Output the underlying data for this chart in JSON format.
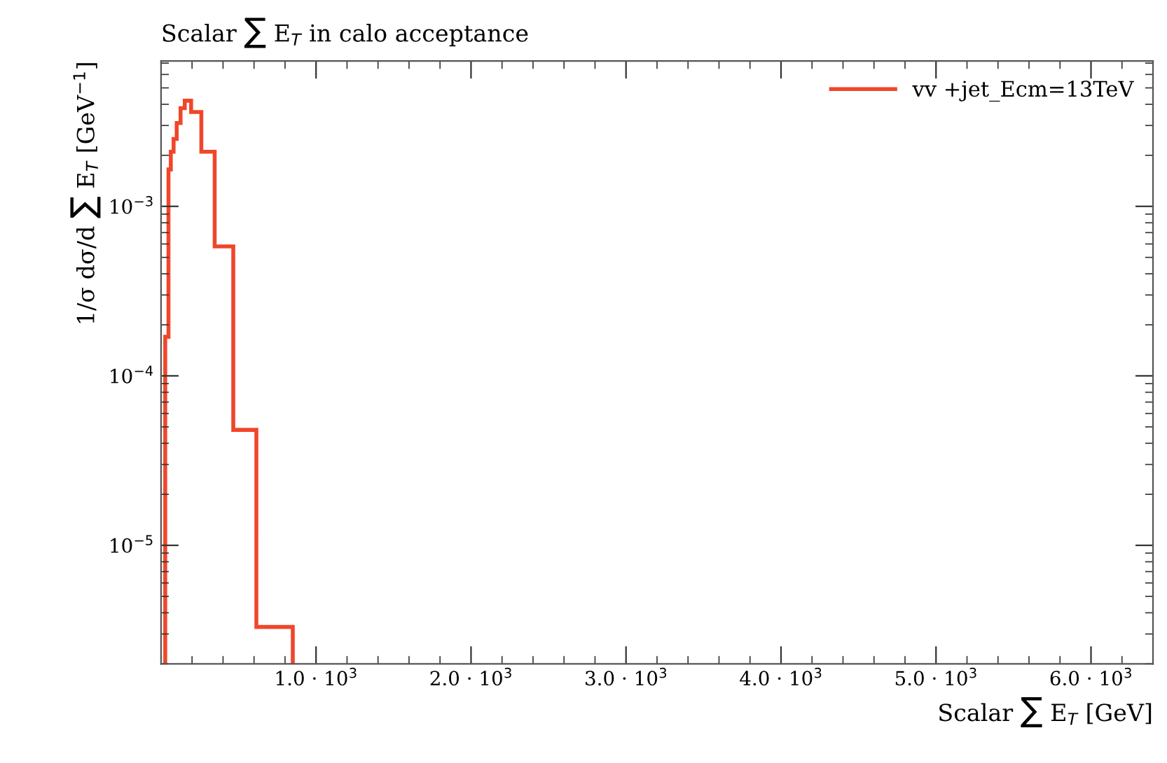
{
  "chart_data": {
    "type": "histogram",
    "title": "Scalar ∑ E$_{T}$ in calo acceptance",
    "xlabel": "Scalar ∑ E$_{T}$ [GeV]",
    "ylabel": "1/σ dσ/d ∑ E$_{T}$ [GeV$^{−1}$]",
    "bins": [
      27,
      48,
      63,
      81,
      101,
      126,
      153,
      194,
      260,
      346,
      466,
      615,
      850
    ],
    "series": [
      {
        "name": "vv +jet_Ecm=13TeV",
        "color": "#f0462a",
        "values": [
          0.00017,
          0.00165,
          0.0021,
          0.0025,
          0.0031,
          0.0038,
          0.0042,
          0.0036,
          0.0021,
          0.00058,
          4.8e-05,
          3.3e-06
        ]
      }
    ],
    "log": "y",
    "xlim": [
      0,
      6400
    ],
    "ylim": [
      2e-06,
      0.0072
    ],
    "xticks": [
      {
        "value": 1000,
        "label": "1.0 · 10$^{3}$"
      },
      {
        "value": 2000,
        "label": "2.0 · 10$^{3}$"
      },
      {
        "value": 3000,
        "label": "3.0 · 10$^{3}$"
      },
      {
        "value": 4000,
        "label": "4.0 · 10$^{3}$"
      },
      {
        "value": 5000,
        "label": "5.0 · 10$^{3}$"
      },
      {
        "value": 6000,
        "label": "6.0 · 10$^{3}$"
      }
    ],
    "yticks": [
      {
        "value": 1e-05,
        "label": "10$^{−5}$"
      },
      {
        "value": 0.0001,
        "label": "10$^{−4}$"
      },
      {
        "value": 0.001,
        "label": "10$^{−3}$"
      }
    ],
    "legend": "top right"
  }
}
